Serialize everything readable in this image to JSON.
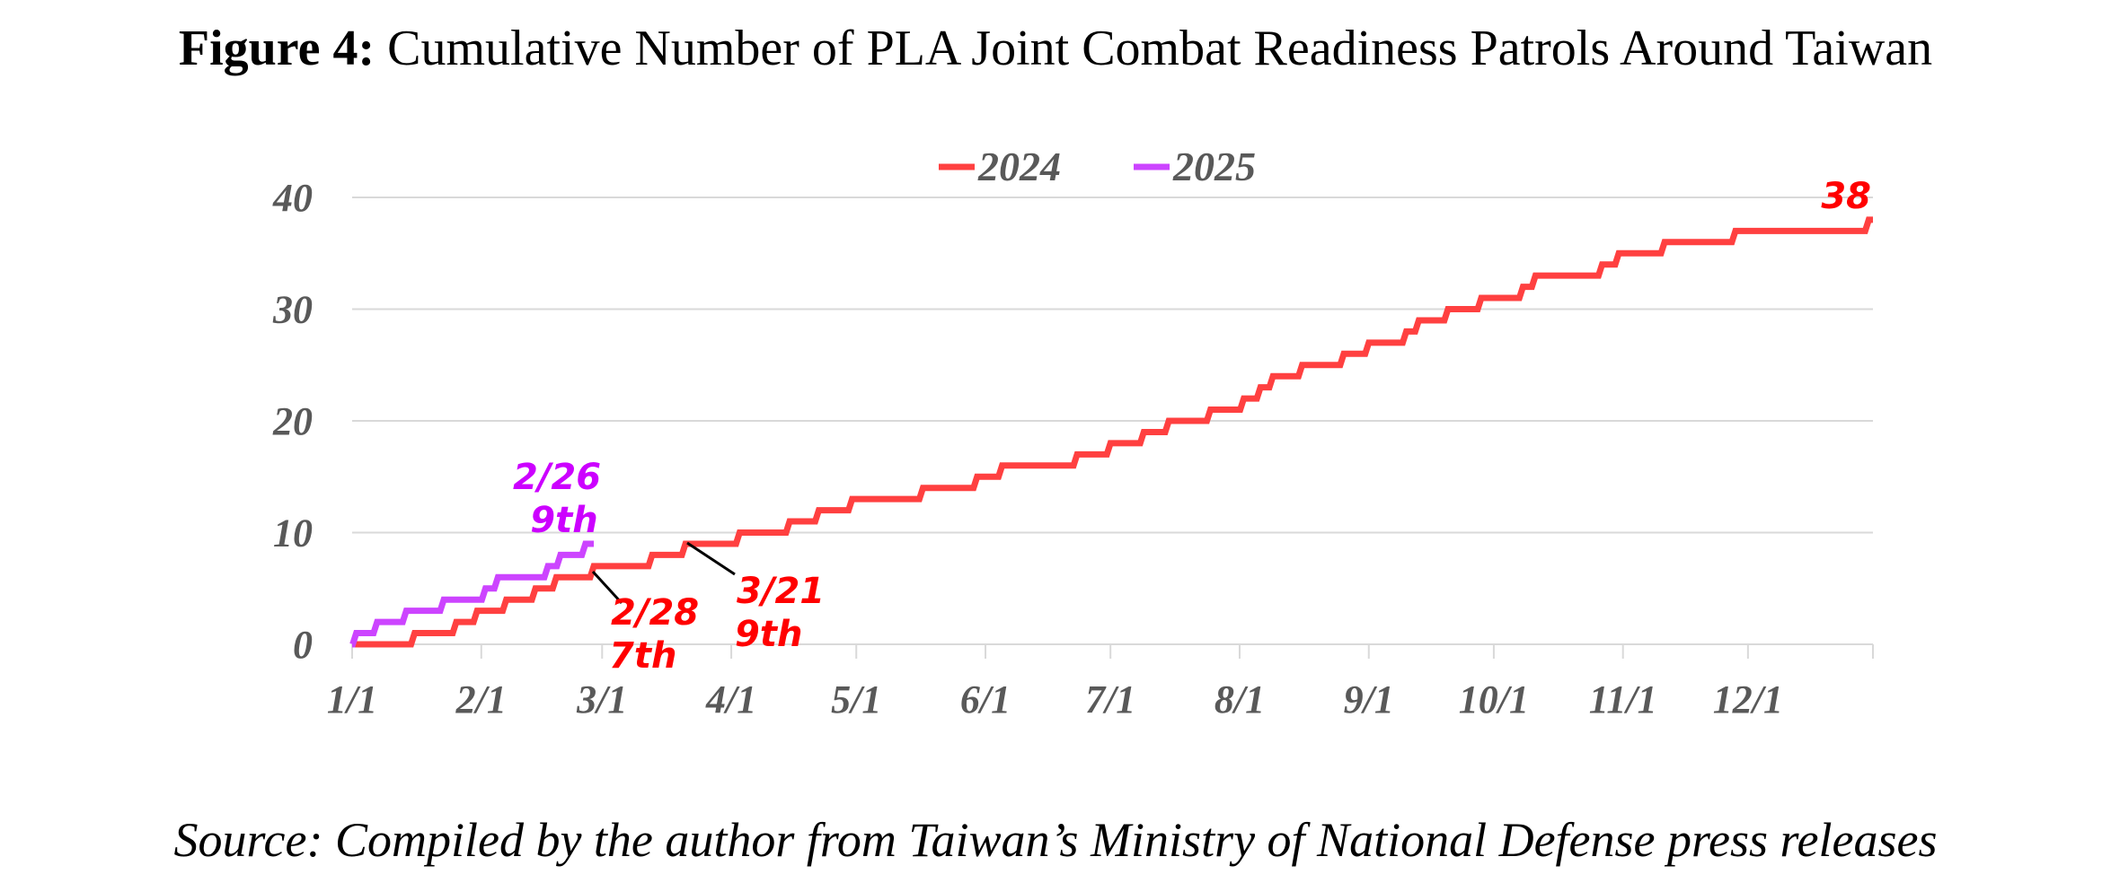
{
  "figure": {
    "title_prefix": "Figure 4:",
    "title_text": "Cumulative Number of PLA Joint Combat Readiness Patrols Around Taiwan",
    "source": "Source: Compiled by the author from Taiwan’s Ministry of National Defense press releases"
  },
  "chart_data": {
    "type": "line",
    "title": "Cumulative Number of PLA Joint Combat Readiness Patrols Around Taiwan",
    "xlabel": "",
    "ylabel": "",
    "x_unit": "day of year",
    "xlim": [
      1,
      366
    ],
    "ylim": [
      0,
      40
    ],
    "grid": true,
    "legend_position": "top-center",
    "x_ticks": [
      {
        "label": "1/1",
        "day": 1
      },
      {
        "label": "2/1",
        "day": 32
      },
      {
        "label": "3/1",
        "day": 61
      },
      {
        "label": "4/1",
        "day": 92
      },
      {
        "label": "5/1",
        "day": 122
      },
      {
        "label": "6/1",
        "day": 153
      },
      {
        "label": "7/1",
        "day": 183
      },
      {
        "label": "8/1",
        "day": 214
      },
      {
        "label": "9/1",
        "day": 245
      },
      {
        "label": "10/1",
        "day": 275
      },
      {
        "label": "11/1",
        "day": 306
      },
      {
        "label": "12/1",
        "day": 336
      }
    ],
    "y_ticks": [
      0,
      10,
      20,
      30,
      40
    ],
    "series": [
      {
        "name": "2024",
        "color": "#ff4040",
        "steps": [
          [
            1,
            0
          ],
          [
            16,
            1
          ],
          [
            26,
            2
          ],
          [
            31,
            3
          ],
          [
            38,
            4
          ],
          [
            45,
            5
          ],
          [
            50,
            6
          ],
          [
            59,
            7
          ],
          [
            73,
            8
          ],
          [
            81,
            9
          ],
          [
            94,
            10
          ],
          [
            106,
            11
          ],
          [
            113,
            12
          ],
          [
            121,
            13
          ],
          [
            138,
            14
          ],
          [
            151,
            15
          ],
          [
            157,
            16
          ],
          [
            175,
            17
          ],
          [
            183,
            18
          ],
          [
            191,
            19
          ],
          [
            197,
            20
          ],
          [
            207,
            21
          ],
          [
            215,
            22
          ],
          [
            219,
            23
          ],
          [
            222,
            24
          ],
          [
            229,
            25
          ],
          [
            239,
            26
          ],
          [
            245,
            27
          ],
          [
            254,
            28
          ],
          [
            257,
            29
          ],
          [
            264,
            30
          ],
          [
            272,
            31
          ],
          [
            282,
            32
          ],
          [
            285,
            33
          ],
          [
            301,
            34
          ],
          [
            305,
            35
          ],
          [
            316,
            36
          ],
          [
            333,
            37
          ],
          [
            365,
            38
          ]
        ]
      },
      {
        "name": "2025",
        "color": "#cc44ff",
        "steps": [
          [
            1,
            0
          ],
          [
            2,
            1
          ],
          [
            7,
            2
          ],
          [
            14,
            3
          ],
          [
            23,
            4
          ],
          [
            33,
            5
          ],
          [
            36,
            6
          ],
          [
            48,
            7
          ],
          [
            51,
            8
          ],
          [
            57,
            9
          ],
          [
            59,
            9
          ]
        ]
      }
    ],
    "annotations": [
      {
        "series": "2025",
        "lines": [
          "2/26",
          "9th"
        ],
        "color": "#cc00ff"
      },
      {
        "series": "2024",
        "lines": [
          "2/28",
          "7th"
        ],
        "color": "#ff0000"
      },
      {
        "series": "2024",
        "lines": [
          "3/21",
          "9th"
        ],
        "color": "#ff0000"
      },
      {
        "series": "2024",
        "lines": [
          "38"
        ],
        "color": "#ff0000"
      }
    ]
  }
}
